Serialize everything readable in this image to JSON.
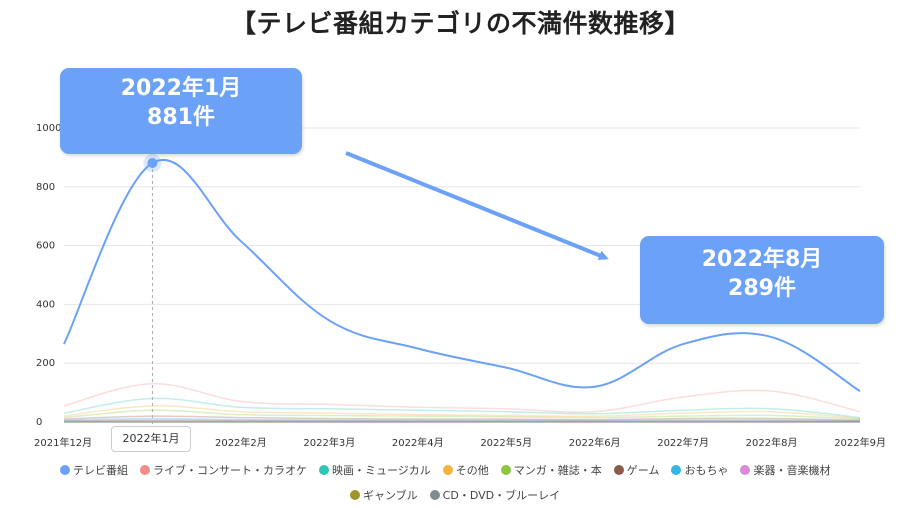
{
  "title": "【テレビ番組カテゴリの不満件数推移】",
  "chart_data": {
    "type": "line",
    "title": "【テレビ番組カテゴリの不満件数推移】",
    "categories": [
      "2021年12月",
      "2022年1月",
      "2022年2月",
      "2022年3月",
      "2022年4月",
      "2022年5月",
      "2022年6月",
      "2022年7月",
      "2022年8月",
      "2022年9月"
    ],
    "yticks": [
      0,
      200,
      400,
      600,
      800,
      1000
    ],
    "ylim": [
      0,
      1000
    ],
    "grid": true,
    "series": [
      {
        "name": "テレビ番組",
        "color": "#6ba1f7",
        "values": [
          265,
          881,
          615,
          345,
          250,
          185,
          120,
          265,
          289,
          105
        ]
      },
      {
        "name": "ライブ・コンサート・カラオケ",
        "color": "#f48c8c",
        "values": [
          55,
          130,
          70,
          60,
          50,
          45,
          35,
          85,
          105,
          35
        ]
      },
      {
        "name": "映画・ミュージカル",
        "color": "#2ec7b6",
        "values": [
          30,
          80,
          50,
          45,
          40,
          35,
          28,
          40,
          45,
          15
        ]
      },
      {
        "name": "その他",
        "color": "#f5b13d",
        "values": [
          20,
          55,
          35,
          30,
          25,
          22,
          20,
          30,
          35,
          12
        ]
      },
      {
        "name": "マンガ・雑誌・本",
        "color": "#8cc63f",
        "values": [
          15,
          40,
          25,
          22,
          20,
          18,
          15,
          20,
          22,
          10
        ]
      },
      {
        "name": "ゲーム",
        "color": "#8b5a4a",
        "values": [
          10,
          20,
          15,
          12,
          10,
          10,
          8,
          12,
          12,
          6
        ]
      },
      {
        "name": "おもちゃ",
        "color": "#33b5e5",
        "values": [
          6,
          12,
          8,
          7,
          6,
          6,
          5,
          7,
          7,
          4
        ]
      },
      {
        "name": "楽器・音楽機材",
        "color": "#d98ad9",
        "values": [
          4,
          8,
          6,
          5,
          4,
          4,
          3,
          5,
          5,
          3
        ]
      },
      {
        "name": "ギャンブル",
        "color": "#a0952a",
        "values": [
          3,
          5,
          4,
          3,
          3,
          3,
          2,
          3,
          3,
          2
        ]
      },
      {
        "name": "CD・DVD・ブルーレイ",
        "color": "#7f8c8d",
        "values": [
          2,
          4,
          3,
          3,
          2,
          2,
          2,
          2,
          2,
          1
        ]
      }
    ],
    "highlight": {
      "category": "2022年1月",
      "series": "テレビ番組",
      "value": 881
    }
  },
  "callouts": {
    "left_line1": "2022年1月",
    "left_line2": "881件",
    "right_line1": "2022年8月",
    "right_line2": "289件"
  },
  "hover_label": "2022年1月"
}
